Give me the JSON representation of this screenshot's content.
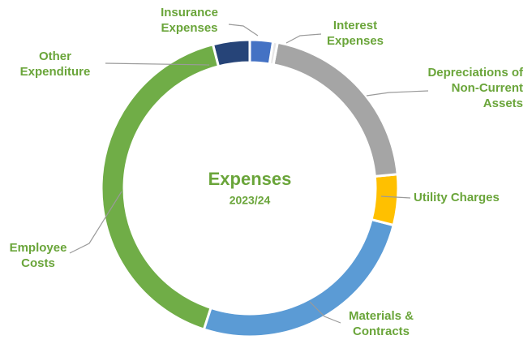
{
  "chart_data": {
    "type": "donut",
    "title": "Expenses",
    "subtitle": "2023/24",
    "categories": [
      "Insurance Expenses",
      "Interest Expenses",
      "Depreciations of Non-Current Assets",
      "Utility Charges",
      "Materials & Contracts",
      "Employee Costs",
      "Other Expenditure"
    ],
    "values": [
      2.5,
      0.5,
      20.5,
      5.5,
      26,
      41,
      4
    ],
    "colors": [
      "#4472c4",
      "#e7e6e6",
      "#a5a5a5",
      "#ffc000",
      "#5b9bd5",
      "#70ad47",
      "#264478"
    ]
  }
}
